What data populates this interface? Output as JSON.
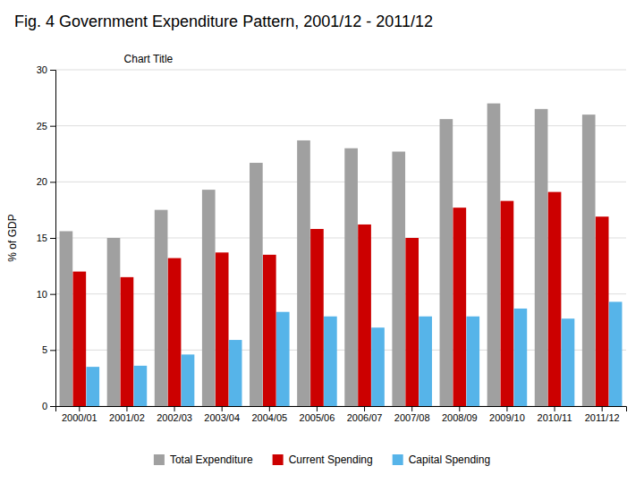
{
  "chart_data": {
    "type": "bar",
    "title": "Fig. 4 Government Expenditure Pattern, 2001/12 - 2011/12",
    "subtitle": "Chart Title",
    "categories": [
      "2000/01",
      "2001/02",
      "2002/03",
      "2003/04",
      "2004/05",
      "2005/06",
      "2006/07",
      "2007/08",
      "2008/09",
      "2009/10",
      "2010/11",
      "2011/12"
    ],
    "series": [
      {
        "name": "Total Expenditure",
        "color": "#a0a0a0",
        "values": [
          15.6,
          15.0,
          17.5,
          19.3,
          21.7,
          23.7,
          23.0,
          22.7,
          25.6,
          27.0,
          26.5,
          26.0
        ]
      },
      {
        "name": "Current Spending",
        "color": "#cc0000",
        "values": [
          12.0,
          11.5,
          13.2,
          13.7,
          13.5,
          15.8,
          16.2,
          15.0,
          17.7,
          18.3,
          19.1,
          16.9
        ]
      },
      {
        "name": "Capital Spending",
        "color": "#56b4e9",
        "values": [
          3.5,
          3.6,
          4.6,
          5.9,
          8.4,
          8.0,
          7.0,
          8.0,
          8.0,
          8.7,
          7.8,
          9.3
        ]
      }
    ],
    "ylabel": "% of GDP",
    "ylim": [
      0,
      30
    ],
    "yticks": [
      0,
      5,
      10,
      15,
      20,
      25,
      30
    ],
    "grid": true,
    "legend": "bottom"
  }
}
